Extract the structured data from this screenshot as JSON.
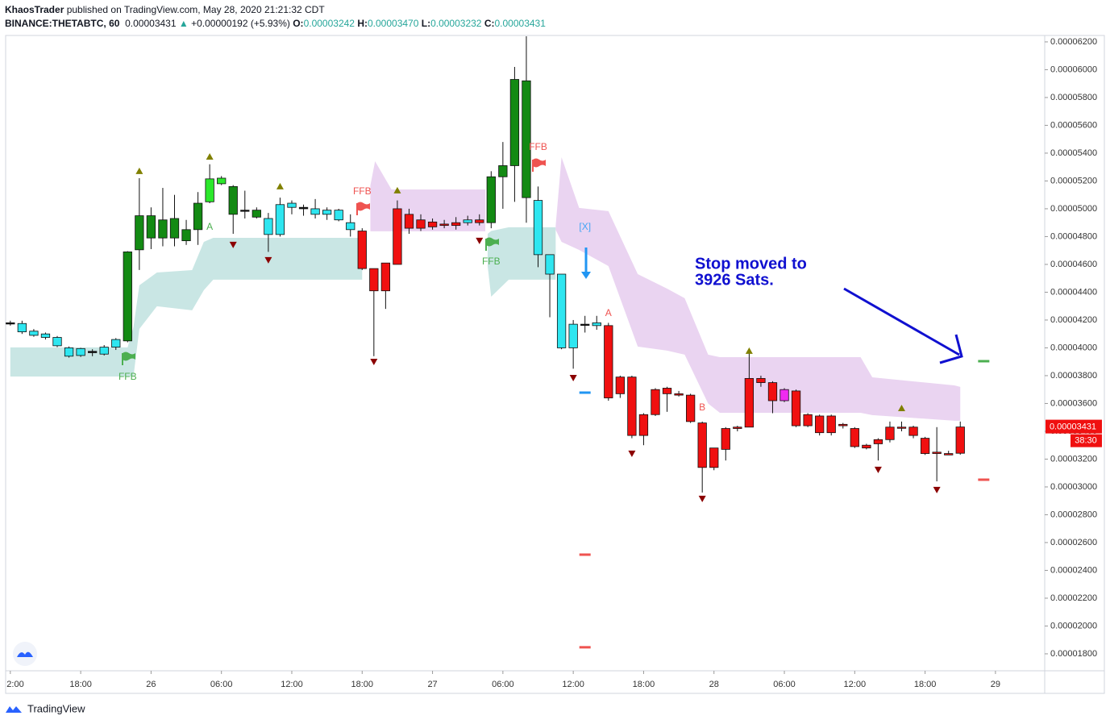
{
  "header": {
    "publisher": "KhaosTrader",
    "published": "published on TradingView.com, May 28, 2020 21:21:32 CDT",
    "symbol": "BINANCE:THETABTC, 60",
    "last": "0.00003431",
    "change": "+0.00000192 (+5.93%)",
    "ohlc": [
      {
        "label": "O:",
        "value": "0.00003242"
      },
      {
        "label": "H:",
        "value": "0.00003470"
      },
      {
        "label": "L:",
        "value": "0.00003232"
      },
      {
        "label": "C:",
        "value": "0.00003431"
      }
    ]
  },
  "footer": {
    "brand": "TradingView"
  },
  "chart_data": {
    "type": "candlestick",
    "grid": false,
    "xlim": [
      -0.4,
      88.2
    ],
    "xticks": [
      {
        "value": 0,
        "label": "2:00"
      },
      {
        "value": 6,
        "label": "18:00"
      },
      {
        "value": 12,
        "label": "26"
      },
      {
        "value": 18,
        "label": "06:00"
      },
      {
        "value": 24,
        "label": "12:00"
      },
      {
        "value": 30,
        "label": "18:00"
      },
      {
        "value": 36,
        "label": "27"
      },
      {
        "value": 42,
        "label": "06:00"
      },
      {
        "value": 48,
        "label": "12:00"
      },
      {
        "value": 54,
        "label": "18:00"
      },
      {
        "value": 60,
        "label": "28"
      },
      {
        "value": 66,
        "label": "06:00"
      },
      {
        "value": 72,
        "label": "12:00"
      },
      {
        "value": 78,
        "label": "18:00"
      },
      {
        "value": 84,
        "label": "29"
      }
    ],
    "ylim": [
      1.678e-05,
      6.246e-05
    ],
    "yticks": [
      {
        "value": 1.8e-05,
        "label": "0.00001800"
      },
      {
        "value": 2e-05,
        "label": "0.00002000"
      },
      {
        "value": 2.2e-05,
        "label": "0.00002200"
      },
      {
        "value": 2.4e-05,
        "label": "0.00002400"
      },
      {
        "value": 2.6e-05,
        "label": "0.00002600"
      },
      {
        "value": 2.8e-05,
        "label": "0.00002800"
      },
      {
        "value": 3e-05,
        "label": "0.00003000"
      },
      {
        "value": 3.2e-05,
        "label": "0.00003200"
      },
      {
        "value": 3.4e-05,
        "label": "0.00003400"
      },
      {
        "value": 3.6e-05,
        "label": "0.00003600"
      },
      {
        "value": 3.8e-05,
        "label": "0.00003800"
      },
      {
        "value": 4e-05,
        "label": "0.00004000"
      },
      {
        "value": 4.2e-05,
        "label": "0.00004200"
      },
      {
        "value": 4.4e-05,
        "label": "0.00004400"
      },
      {
        "value": 4.6e-05,
        "label": "0.00004600"
      },
      {
        "value": 4.8e-05,
        "label": "0.00004800"
      },
      {
        "value": 5e-05,
        "label": "0.00005000"
      },
      {
        "value": 5.2e-05,
        "label": "0.00005200"
      },
      {
        "value": 5.4e-05,
        "label": "0.00005400"
      },
      {
        "value": 5.6e-05,
        "label": "0.00005600"
      },
      {
        "value": 5.8e-05,
        "label": "0.00005800"
      },
      {
        "value": 6e-05,
        "label": "0.00006000"
      },
      {
        "value": 6.2e-05,
        "label": "0.00006200"
      }
    ],
    "x": [
      0,
      1,
      2,
      3,
      4,
      5,
      6,
      7,
      8,
      9,
      10,
      11,
      12,
      13,
      14,
      15,
      16,
      17,
      18,
      19,
      20,
      21,
      22,
      23,
      24,
      25,
      26,
      27,
      28,
      29,
      30,
      31,
      32,
      33,
      34,
      35,
      36,
      37,
      38,
      39,
      40,
      41,
      42,
      43,
      44,
      45,
      46,
      47,
      48,
      49,
      50,
      51,
      52,
      53,
      54,
      55,
      56,
      57,
      58,
      59,
      60,
      61,
      62,
      63,
      64,
      65,
      66,
      67,
      68,
      69,
      70,
      71,
      72,
      73,
      74,
      75,
      76,
      77,
      78,
      79,
      80,
      81
    ],
    "open": [
      4.175e-05,
      4.115e-05,
      4.09e-05,
      4.075e-05,
      4.015e-05,
      3.94e-05,
      3.945e-05,
      3.965e-05,
      3.955e-05,
      4.005e-05,
      4.05e-05,
      4.705e-05,
      4.79e-05,
      4.79e-05,
      4.79e-05,
      4.77e-05,
      4.85e-05,
      5.05e-05,
      5.18e-05,
      4.96e-05,
      4.985e-05,
      4.94e-05,
      4.815e-05,
      4.815e-05,
      5.01e-05,
      5e-05,
      4.96e-05,
      4.96e-05,
      4.92e-05,
      4.85e-05,
      4.84e-05,
      4.57e-05,
      4.61e-05,
      4.6e-05,
      4.96e-05,
      4.92e-05,
      4.905e-05,
      4.89e-05,
      4.88e-05,
      4.9e-05,
      4.92e-05,
      4.9e-05,
      5.23e-05,
      5.31e-05,
      5.92e-05,
      5.06e-05,
      4.67e-05,
      4.53e-05,
      4e-05,
      4.17e-05,
      4.16e-05,
      4.16e-05,
      3.79e-05,
      3.79e-05,
      3.52e-05,
      3.7e-05,
      3.71e-05,
      3.67e-05,
      3.66e-05,
      3.46e-05,
      3.28e-05,
      3.42e-05,
      3.42e-05,
      3.43e-05,
      3.78e-05,
      3.75e-05,
      3.62e-05,
      3.69e-05,
      3.52e-05,
      3.51e-05,
      3.51e-05,
      3.45e-05,
      3.42e-05,
      3.3e-05,
      3.31e-05,
      3.34e-05,
      3.43e-05,
      3.43e-05,
      3.35e-05,
      3.24e-05,
      3.24e-05,
      3.242e-05
    ],
    "high": [
      4.195e-05,
      4.195e-05,
      4.135e-05,
      4.11e-05,
      4.085e-05,
      4.01e-05,
      4e-05,
      3.99e-05,
      4.02e-05,
      4.07e-05,
      4.695e-05,
      5.22e-05,
      5.01e-05,
      5.15e-05,
      5.1e-05,
      4.92e-05,
      5.12e-05,
      5.32e-05,
      5.235e-05,
      5.17e-05,
      5.13e-05,
      5.01e-05,
      4.97e-05,
      5.08e-05,
      5.06e-05,
      5.03e-05,
      5.07e-05,
      5.01e-05,
      5e-05,
      4.96e-05,
      4.86e-05,
      4.57e-05,
      4.61e-05,
      5.06e-05,
      5e-05,
      4.96e-05,
      4.93e-05,
      4.92e-05,
      4.94e-05,
      4.95e-05,
      4.96e-05,
      5.27e-05,
      5.48e-05,
      6.02e-05,
      6.24e-05,
      5.16e-05,
      4.67e-05,
      4.53e-05,
      4.2e-05,
      4.23e-05,
      4.23e-05,
      4.18e-05,
      3.8e-05,
      3.8e-05,
      3.53e-05,
      3.71e-05,
      3.72e-05,
      3.69e-05,
      3.67e-05,
      3.47e-05,
      3.28e-05,
      3.43e-05,
      3.44e-05,
      3.97e-05,
      3.8e-05,
      3.76e-05,
      3.71e-05,
      3.7e-05,
      3.53e-05,
      3.52e-05,
      3.52e-05,
      3.46e-05,
      3.43e-05,
      3.31e-05,
      3.35e-05,
      3.47e-05,
      3.47e-05,
      3.44e-05,
      3.36e-05,
      3.43e-05,
      3.26e-05,
      3.47e-05
    ],
    "low": [
      4.16e-05,
      4.1e-05,
      4.08e-05,
      4.06e-05,
      4.005e-05,
      3.93e-05,
      3.935e-05,
      3.94e-05,
      3.945e-05,
      3.985e-05,
      4.04e-05,
      4.56e-05,
      4.71e-05,
      4.73e-05,
      4.73e-05,
      4.74e-05,
      4.74e-05,
      5.04e-05,
      5.17e-05,
      4.82e-05,
      4.93e-05,
      4.93e-05,
      4.69e-05,
      4.8e-05,
      4.96e-05,
      4.95e-05,
      4.93e-05,
      4.92e-05,
      4.91e-05,
      4.8e-05,
      4.56e-05,
      3.94e-05,
      4.28e-05,
      4.6e-05,
      4.82e-05,
      4.84e-05,
      4.85e-05,
      4.86e-05,
      4.85e-05,
      4.88e-05,
      4.88e-05,
      4.86e-05,
      5e-05,
      5.05e-05,
      4.9e-05,
      4.58e-05,
      4.22e-05,
      3.99e-05,
      3.85e-05,
      4.11e-05,
      4.13e-05,
      3.62e-05,
      3.64e-05,
      3.35e-05,
      3.3e-05,
      3.51e-05,
      3.54e-05,
      3.65e-05,
      3.46e-05,
      2.96e-05,
      3.12e-05,
      3.19e-05,
      3.4e-05,
      3.43e-05,
      3.72e-05,
      3.53e-05,
      3.61e-05,
      3.43e-05,
      3.43e-05,
      3.37e-05,
      3.37e-05,
      3.42e-05,
      3.28e-05,
      3.27e-05,
      3.19e-05,
      3.32e-05,
      3.4e-05,
      3.35e-05,
      3.23e-05,
      3.04e-05,
      3.23e-05,
      3.232e-05
    ],
    "close": [
      4.18e-05,
      4.175e-05,
      4.12e-05,
      4.1e-05,
      4.075e-05,
      4e-05,
      3.995e-05,
      3.975e-05,
      4.005e-05,
      4.06e-05,
      4.69e-05,
      4.95e-05,
      4.95e-05,
      4.92e-05,
      4.93e-05,
      4.85e-05,
      5.04e-05,
      5.215e-05,
      5.22e-05,
      5.16e-05,
      4.99e-05,
      4.99e-05,
      4.93e-05,
      5.03e-05,
      5.04e-05,
      5.01e-05,
      5e-05,
      4.99e-05,
      4.99e-05,
      4.9e-05,
      4.57e-05,
      4.41e-05,
      4.41e-05,
      5e-05,
      4.86e-05,
      4.86e-05,
      4.87e-05,
      4.88e-05,
      4.9e-05,
      4.92e-05,
      4.9e-05,
      5.23e-05,
      5.31e-05,
      5.93e-05,
      5.08e-05,
      4.67e-05,
      4.53e-05,
      4e-05,
      4.17e-05,
      4.17e-05,
      4.18e-05,
      3.64e-05,
      3.67e-05,
      3.37e-05,
      3.37e-05,
      3.52e-05,
      3.67e-05,
      3.66e-05,
      3.47e-05,
      3.14e-05,
      3.14e-05,
      3.27e-05,
      3.43e-05,
      3.78e-05,
      3.75e-05,
      3.62e-05,
      3.7e-05,
      3.44e-05,
      3.44e-05,
      3.39e-05,
      3.39e-05,
      3.44e-05,
      3.29e-05,
      3.28e-05,
      3.34e-05,
      3.43e-05,
      3.43e-05,
      3.37e-05,
      3.24e-05,
      3.25e-05,
      3.23e-05,
      3.431e-05
    ],
    "colors": [
      "#111111",
      "#2ee6f0",
      "#2ee6f0",
      "#2ee6f0",
      "#2ee6f0",
      "#2ee6f0",
      "#2ee6f0",
      "#111111",
      "#2ee6f0",
      "#2ee6f0",
      "#138a13",
      "#138a13",
      "#138a13",
      "#138a13",
      "#138a13",
      "#138a13",
      "#138a13",
      "#2be82b",
      "#2be82b",
      "#138a13",
      "#111111",
      "#138a13",
      "#2ee6f0",
      "#2ee6f0",
      "#2ee6f0",
      "#111111",
      "#2ee6f0",
      "#2ee6f0",
      "#2ee6f0",
      "#2ee6f0",
      "#f01010",
      "#f01010",
      "#f01010",
      "#f01010",
      "#f01010",
      "#f01010",
      "#f01010",
      "#f01010",
      "#f01010",
      "#2ee6f0",
      "#f01010",
      "#138a13",
      "#138a13",
      "#138a13",
      "#138a13",
      "#2ee6f0",
      "#2ee6f0",
      "#2ee6f0",
      "#2ee6f0",
      "#111111",
      "#2ee6f0",
      "#f01010",
      "#f01010",
      "#f01010",
      "#f01010",
      "#f01010",
      "#f01010",
      "#f01010",
      "#f01010",
      "#f01010",
      "#f01010",
      "#f01010",
      "#f01010",
      "#f01010",
      "#f01010",
      "#f01010",
      "#f02af0",
      "#f01010",
      "#f01010",
      "#f01010",
      "#f01010",
      "#f01010",
      "#f01010",
      "#f01010",
      "#f01010",
      "#f01010",
      "#f01010",
      "#f01010",
      "#f01010",
      "#f01010",
      "#f01010",
      "#f01010"
    ],
    "bands": [
      {
        "color": "#c9e6e4",
        "x": [
          0,
          10,
          10.5,
          11,
          12.5,
          15.5,
          16.5,
          17.3,
          30
        ],
        "upper": [
          4.003e-05,
          4.003e-05,
          4.15e-05,
          4.45e-05,
          4.542e-05,
          4.559e-05,
          4.762e-05,
          4.791e-05,
          4.791e-05
        ],
        "lower": [
          3.794e-05,
          3.794e-05,
          3.794e-05,
          4.136e-05,
          4.299e-05,
          4.27e-05,
          4.415e-05,
          4.49e-05,
          4.49e-05
        ]
      },
      {
        "color": "#c9e6e4",
        "x": [
          40.7,
          41,
          42.5,
          46.5
        ],
        "upper": [
          4.82e-05,
          4.84e-05,
          4.867e-05,
          4.867e-05
        ],
        "lower": [
          4.589e-05,
          4.368e-05,
          4.49e-05,
          4.49e-05
        ]
      },
      {
        "color": "#ead4f1",
        "x": [
          30.7,
          31.1,
          32.5,
          40.5
        ],
        "upper": [
          5.168e-05,
          5.342e-05,
          5.139e-05,
          5.139e-05
        ],
        "lower": [
          4.838e-05,
          4.838e-05,
          4.838e-05,
          4.838e-05
        ]
      },
      {
        "color": "#ead4f1",
        "x": [
          46.5,
          47,
          48.5,
          51,
          53.5,
          56,
          57.5,
          59.5,
          60.5,
          72.5,
          73.5,
          80.5,
          81
        ],
        "upper": [
          4.878e-05,
          5.371e-05,
          5.006e-05,
          4.983e-05,
          4.53e-05,
          4.426e-05,
          4.357e-05,
          3.951e-05,
          3.933e-05,
          3.933e-05,
          3.788e-05,
          3.73e-05,
          3.719e-05
        ],
        "lower": [
          4.849e-05,
          4.762e-05,
          4.704e-05,
          4.588e-05,
          4.009e-05,
          3.98e-05,
          3.951e-05,
          3.6e-05,
          3.533e-05,
          3.533e-05,
          3.516e-05,
          3.476e-05,
          3.476e-05
        ]
      }
    ],
    "up_markers": {
      "color": "#808000",
      "x": [
        11,
        17,
        23,
        33,
        63,
        76
      ],
      "y": [
        5.267e-05,
        5.371e-05,
        5.157e-05,
        5.128e-05,
        3.974e-05,
        3.562e-05
      ]
    },
    "down_markers": {
      "color": "#8b0000",
      "x": [
        19,
        22,
        31,
        40,
        48,
        53,
        59,
        74,
        79
      ],
      "y": [
        4.745e-05,
        4.635e-05,
        3.904e-05,
        4.774e-05,
        3.788e-05,
        3.244e-05,
        2.919e-05,
        3.128e-05,
        2.983e-05
      ]
    },
    "levels": {
      "x": [
        83,
        83,
        49,
        49,
        49
      ],
      "y": [
        3.904e-05,
        3.052e-05,
        3.678e-05,
        2.513e-05,
        1.847e-05
      ],
      "colors": [
        "#4caf50",
        "#ef5350",
        "#2196f3",
        "#ef5350",
        "#ef5350"
      ]
    },
    "annotations": [
      {
        "text": "FFB",
        "x": 10,
        "y": 3.788e-05,
        "color": "#4caf50"
      },
      {
        "text": "FFB",
        "x": 30,
        "y": 5.122e-05,
        "color": "#ef5350"
      },
      {
        "text": "FFB",
        "x": 41,
        "y": 4.617e-05,
        "color": "#4caf50"
      },
      {
        "text": "FFB",
        "x": 45,
        "y": 5.441e-05,
        "color": "#ef5350"
      },
      {
        "text": "A",
        "x": 17,
        "y": 4.867e-05,
        "color": "#4caf50"
      },
      {
        "text": "A",
        "x": 51,
        "y": 4.246e-05,
        "color": "#ef5350"
      },
      {
        "text": "B",
        "x": 59,
        "y": 3.568e-05,
        "color": "#ef5350"
      },
      {
        "text": "[X]",
        "x": 49,
        "y": 4.867e-05,
        "color": "#42a5f5"
      }
    ],
    "note": {
      "lines": [
        "Stop moved to",
        "3926 Sats."
      ],
      "color": "#1010d0"
    },
    "last_price": {
      "value": 3.431e-05,
      "label": "0.00003431"
    },
    "countdown": "38:30"
  }
}
